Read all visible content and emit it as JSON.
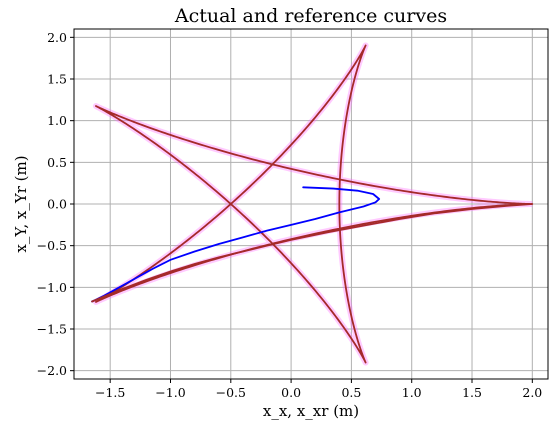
{
  "chart_data": {
    "type": "line",
    "title": "Actual and reference curves",
    "xlabel": "x_x, x_xr (m)",
    "ylabel": "x_Y, x_Yr (m)",
    "xlim": [
      -1.8,
      2.13
    ],
    "ylim": [
      -2.1,
      2.1
    ],
    "x_ticks": [
      "−1.5",
      "−1.0",
      "−0.5",
      "0.0",
      "0.5",
      "1.0",
      "1.5",
      "2.0"
    ],
    "y_ticks": [
      "−2.0",
      "−1.5",
      "−1.0",
      "−0.5",
      "0.0",
      "0.5",
      "1.0",
      "1.5",
      "2.0"
    ],
    "x_tick_values": [
      -1.5,
      -1.0,
      -0.5,
      0.0,
      0.5,
      1.0,
      1.5,
      2.0
    ],
    "y_tick_values": [
      -2.0,
      -1.5,
      -1.0,
      -0.5,
      0.0,
      0.5,
      1.0,
      1.5,
      2.0
    ],
    "grid": true,
    "reference_curve": {
      "kind": "hypotrochoid-star",
      "equation": "x = 1.2 cos t + 0.8 cos(1.5 t), y = 1.2 sin t - 0.8 sin(1.5 t), t in [0, 4π]",
      "color_halo": "#ff66ff",
      "color_line": "#a52a2a"
    },
    "series": [
      {
        "color": "#0000ff",
        "points": [
          [
            0.1,
            0.2
          ],
          [
            0.35,
            0.185
          ],
          [
            0.55,
            0.16
          ],
          [
            0.68,
            0.12
          ],
          [
            0.73,
            0.06
          ],
          [
            0.7,
            0.02
          ],
          [
            0.6,
            -0.03
          ],
          [
            0.4,
            -0.1
          ],
          [
            0.2,
            -0.18
          ],
          [
            0.0,
            -0.25
          ],
          [
            -0.2,
            -0.32
          ],
          [
            -0.4,
            -0.4
          ],
          [
            -0.6,
            -0.48
          ],
          [
            -0.8,
            -0.57
          ],
          [
            -1.0,
            -0.67
          ],
          [
            -1.15,
            -0.78
          ],
          [
            -1.3,
            -0.9
          ],
          [
            -1.45,
            -1.02
          ],
          [
            -1.55,
            -1.1
          ],
          [
            -1.62,
            -1.15
          ],
          [
            -1.65,
            -1.17
          ]
        ]
      },
      {
        "color": "#a52a2a",
        "points": [
          [
            -1.65,
            -1.17
          ],
          [
            -1.55,
            -1.11
          ],
          [
            -1.4,
            -1.02
          ],
          [
            -1.2,
            -0.91
          ],
          [
            -1.0,
            -0.81
          ],
          [
            -0.8,
            -0.72
          ],
          [
            -0.6,
            -0.64
          ],
          [
            -0.4,
            -0.57
          ],
          [
            -0.2,
            -0.5
          ],
          [
            0.0,
            -0.43
          ],
          [
            0.3,
            -0.34
          ],
          [
            0.6,
            -0.26
          ],
          [
            0.9,
            -0.18
          ],
          [
            1.2,
            -0.11
          ],
          [
            1.5,
            -0.06
          ],
          [
            1.8,
            -0.02
          ],
          [
            2.0,
            0.0
          ]
        ]
      }
    ]
  }
}
